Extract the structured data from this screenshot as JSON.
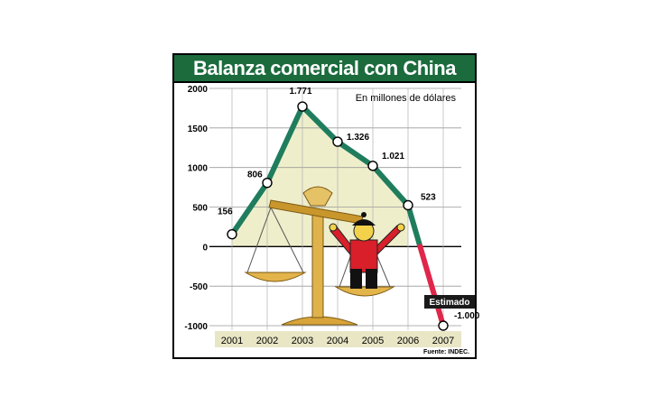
{
  "title": "Balanza comercial con China",
  "subtitle": "En millones de dólares",
  "source": "Fuente: INDEC.",
  "estimate_label": "Estimado",
  "colors": {
    "title_bg": "#1b6b3d",
    "line": "#1f7d5e",
    "estimate_line": "#e0264a",
    "area": "#efeecb",
    "year_band": "#e9e6c6",
    "estimate_box": "#1a1a1a"
  },
  "icons": [
    "balance-scale-icon",
    "chinese-figure-icon"
  ],
  "chart_data": {
    "type": "line",
    "title": "Balanza comercial con China",
    "subtitle": "En millones de dólares",
    "categories": [
      "2001",
      "2002",
      "2003",
      "2004",
      "2005",
      "2006",
      "2007"
    ],
    "values": [
      156,
      806,
      1771,
      1326,
      1021,
      523,
      -1000
    ],
    "value_labels": [
      "156",
      "806",
      "1.771",
      "1.326",
      "1.021",
      "523",
      "-1.000"
    ],
    "estimated_from_index": 5,
    "y_ticks": [
      2000,
      1500,
      1000,
      500,
      0,
      -500,
      -1000
    ],
    "y_tick_labels": [
      "2000",
      "1500",
      "1000",
      "500",
      "0",
      "-500",
      "-1000"
    ],
    "ylim": [
      -1000,
      2000
    ],
    "grid": true,
    "legend": "none"
  }
}
